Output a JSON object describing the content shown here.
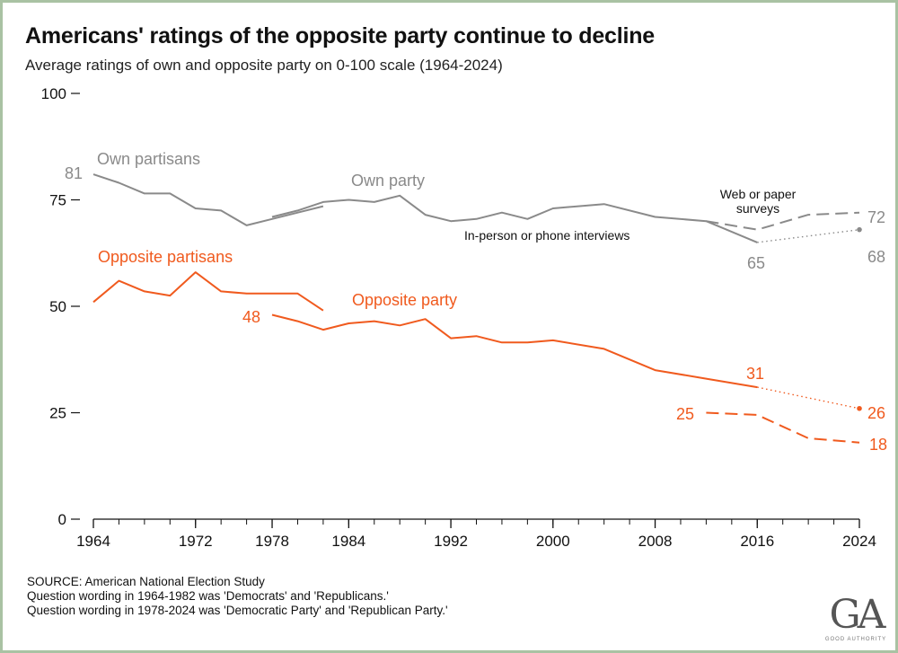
{
  "title": "Americans' ratings of the opposite party continue to decline",
  "subtitle": "Average ratings of own and opposite party on 0-100 scale (1964-2024)",
  "footnotes": [
    "SOURCE: American National Election Study",
    "Question wording in 1964-1982 was 'Democrats' and 'Republicans.'",
    "Question wording in 1978-2024 was 'Democratic Party' and 'Republican Party.'"
  ],
  "logo": {
    "mark": "GA",
    "text": "GOOD AUTHORITY"
  },
  "colors": {
    "own": "#8a8a8a",
    "opposite": "#f05a1e",
    "axis": "#111111"
  },
  "chart_data": {
    "type": "line",
    "title": "Americans' ratings of the opposite party continue to decline",
    "xlim": [
      1964,
      2024
    ],
    "ylim": [
      0,
      100
    ],
    "x_ticks": [
      1964,
      1972,
      1978,
      1984,
      1992,
      2000,
      2008,
      2016,
      2024
    ],
    "y_ticks": [
      0,
      25,
      50,
      75,
      100
    ],
    "series": [
      {
        "name": "Own partisans",
        "group": "own",
        "style": "solid",
        "x": [
          1964,
          1966,
          1968,
          1970,
          1972,
          1974,
          1976,
          1978,
          1980,
          1982
        ],
        "y": [
          81,
          79,
          76.5,
          76.5,
          73,
          72.5,
          69,
          70.5,
          72,
          73.5
        ]
      },
      {
        "name": "Own party",
        "group": "own",
        "style": "solid",
        "x": [
          1978,
          1980,
          1982,
          1984,
          1986,
          1988,
          1990,
          1992,
          1994,
          1996,
          1998,
          2000,
          2004,
          2008,
          2012,
          2016
        ],
        "y": [
          71,
          72.5,
          74.5,
          75,
          74.5,
          76,
          71.5,
          70,
          70.5,
          72,
          70.5,
          73,
          74,
          71,
          70,
          65
        ]
      },
      {
        "name": "Own party (web or paper surveys)",
        "group": "own",
        "style": "dashed",
        "x": [
          2012,
          2016,
          2020,
          2024
        ],
        "y": [
          70,
          68,
          71.5,
          72
        ]
      },
      {
        "name": "Own party (phone to 2024)",
        "group": "own",
        "style": "dotted",
        "x": [
          2016,
          2024
        ],
        "y": [
          65,
          68
        ]
      },
      {
        "name": "Opposite partisans",
        "group": "opposite",
        "style": "solid",
        "x": [
          1964,
          1966,
          1968,
          1970,
          1972,
          1974,
          1976,
          1978,
          1980,
          1982
        ],
        "y": [
          51,
          56,
          53.5,
          52.5,
          58,
          53.5,
          53,
          53,
          53,
          49
        ]
      },
      {
        "name": "Opposite party",
        "group": "opposite",
        "style": "solid",
        "x": [
          1978,
          1980,
          1982,
          1984,
          1986,
          1988,
          1990,
          1992,
          1994,
          1996,
          1998,
          2000,
          2004,
          2008,
          2012,
          2016
        ],
        "y": [
          48,
          46.5,
          44.5,
          46,
          46.5,
          45.5,
          47,
          42.5,
          43,
          41.5,
          41.5,
          42,
          40,
          35,
          33,
          31
        ]
      },
      {
        "name": "Opposite party (web or paper surveys)",
        "group": "opposite",
        "style": "dashed",
        "x": [
          2012,
          2016,
          2020,
          2024
        ],
        "y": [
          25,
          24.5,
          19,
          18
        ]
      },
      {
        "name": "Opposite party (phone to 2024)",
        "group": "opposite",
        "style": "dotted",
        "x": [
          2016,
          2024
        ],
        "y": [
          31,
          26
        ]
      }
    ],
    "annotations": {
      "own_partisans": "Own partisans",
      "own_party": "Own party",
      "opposite_partisans": "Opposite partisans",
      "opposite_party": "Opposite party",
      "web_line1": "Web or paper",
      "web_line2": "surveys",
      "inperson": "In-person or phone interviews"
    },
    "value_labels": {
      "own_1964": "81",
      "own_2016": "65",
      "own_web_2024": "72",
      "own_phone_2024": "68",
      "opp_1978": "48",
      "opp_2016": "31",
      "opp_web_2012": "25",
      "opp_phone_2024": "26",
      "opp_web_2024": "18"
    }
  }
}
